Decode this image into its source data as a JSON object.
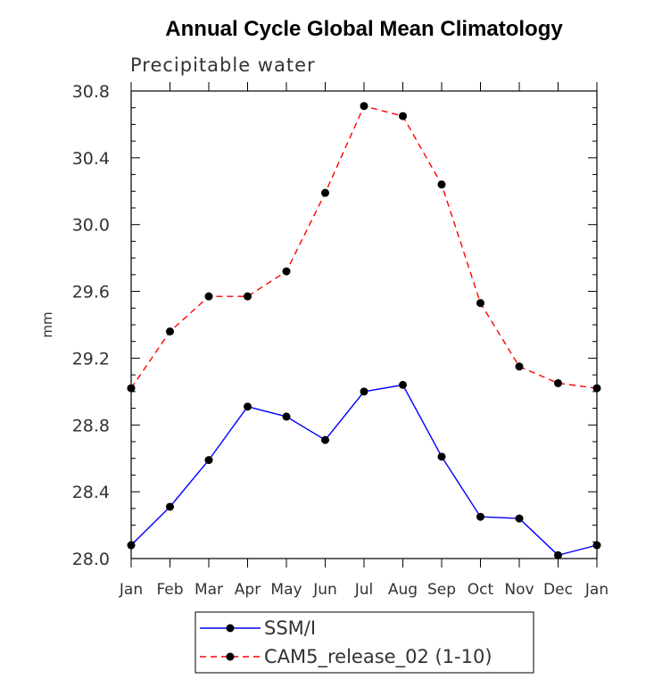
{
  "chart_data": {
    "type": "line",
    "title": "Annual Cycle Global Mean Climatology",
    "subtitle": "Precipitable water",
    "xlabel": "",
    "ylabel": "mm",
    "categories": [
      "Jan",
      "Feb",
      "Mar",
      "Apr",
      "May",
      "Jun",
      "Jul",
      "Aug",
      "Sep",
      "Oct",
      "Nov",
      "Dec",
      "Jan"
    ],
    "ylim": [
      28.0,
      30.8
    ],
    "yticks": [
      "28.0",
      "28.4",
      "28.8",
      "29.2",
      "29.6",
      "30.0",
      "30.4",
      "30.8"
    ],
    "grid": false,
    "legend_position": "bottom",
    "series": [
      {
        "name": "SSM/I",
        "color": "#0000ff",
        "style": "solid",
        "values": [
          28.08,
          28.31,
          28.59,
          28.91,
          28.85,
          28.71,
          29.0,
          29.04,
          28.61,
          28.25,
          28.24,
          28.02,
          28.08
        ]
      },
      {
        "name": "CAM5_release_02 (1-10)",
        "color": "#ff0000",
        "style": "dashed",
        "values": [
          29.02,
          29.36,
          29.57,
          29.57,
          29.72,
          30.19,
          30.71,
          30.65,
          30.24,
          29.53,
          29.15,
          29.05,
          29.02
        ]
      }
    ]
  }
}
